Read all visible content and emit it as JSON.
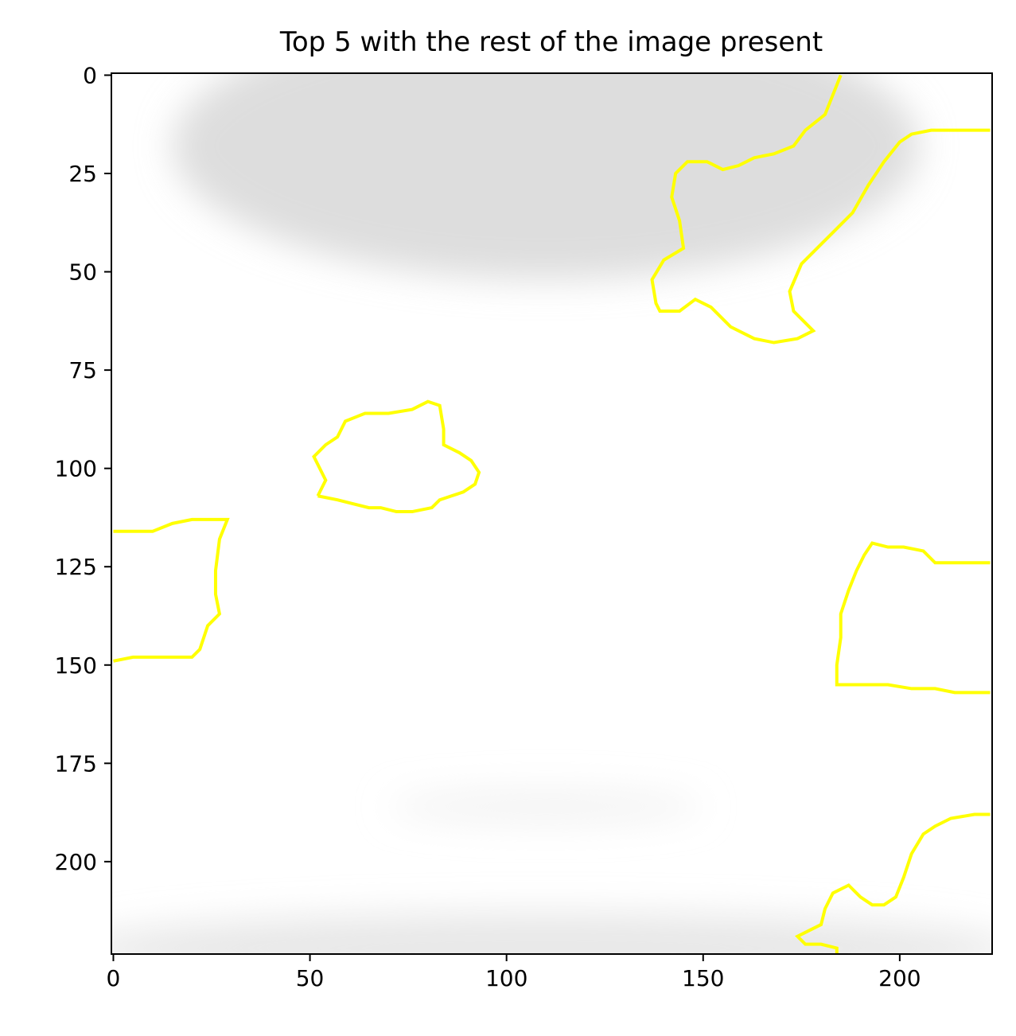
{
  "chart_data": {
    "type": "image",
    "title": "Top 5 with the rest of the image present",
    "xlabel": "",
    "ylabel": "",
    "xlim": [
      -0.5,
      223.5
    ],
    "ylim": [
      223.5,
      -0.5
    ],
    "x_ticks": [
      0,
      50,
      100,
      150,
      200
    ],
    "y_ticks": [
      0,
      25,
      50,
      75,
      100,
      125,
      150,
      175,
      200
    ],
    "x_tick_labels": [
      "0",
      "50",
      "100",
      "150",
      "200"
    ],
    "y_tick_labels": [
      "0",
      "25",
      "50",
      "75",
      "100",
      "125",
      "150",
      "175",
      "200"
    ],
    "grid": false,
    "background": {
      "description": "mostly white grayscale image",
      "shade_regions": [
        {
          "name": "top-cloud",
          "center": [
            110,
            18
          ],
          "radius": [
            95,
            34
          ],
          "gray": "#d2d2d2"
        },
        {
          "name": "bottom-strip",
          "center": [
            110,
            222
          ],
          "radius": [
            120,
            9
          ],
          "gray": "#e0e0e0"
        },
        {
          "name": "faint-band-mid",
          "center": [
            110,
            186
          ],
          "radius": [
            40,
            4
          ],
          "gray": "#ededed"
        }
      ]
    },
    "outline_color": "#ffff00",
    "segments": [
      {
        "name": "region-1-top-right",
        "points": [
          [
            185,
            0
          ],
          [
            183,
            5
          ],
          [
            181,
            10
          ],
          [
            176,
            14
          ],
          [
            173,
            18
          ],
          [
            168,
            20
          ],
          [
            163,
            21
          ],
          [
            159,
            23
          ],
          [
            155,
            24
          ],
          [
            151,
            22
          ],
          [
            146,
            22
          ],
          [
            143,
            25
          ],
          [
            142,
            31
          ],
          [
            144,
            37
          ],
          [
            145,
            44
          ],
          [
            140,
            47
          ],
          [
            137,
            52
          ],
          [
            138,
            58
          ],
          [
            139,
            60
          ],
          [
            144,
            60
          ],
          [
            148,
            57
          ],
          [
            152,
            59
          ],
          [
            157,
            64
          ],
          [
            163,
            67
          ],
          [
            168,
            68
          ],
          [
            174,
            67
          ],
          [
            178,
            65
          ],
          [
            173,
            60
          ],
          [
            172,
            55
          ],
          [
            175,
            48
          ],
          [
            180,
            43
          ],
          [
            183,
            40
          ],
          [
            188,
            35
          ],
          [
            192,
            28
          ],
          [
            196,
            22
          ],
          [
            200,
            17
          ],
          [
            203,
            15
          ],
          [
            208,
            14
          ],
          [
            214,
            14
          ],
          [
            219,
            14
          ],
          [
            223,
            14
          ]
        ]
      },
      {
        "name": "region-2-center",
        "points": [
          [
            52,
            107
          ],
          [
            54,
            103
          ],
          [
            51,
            97
          ],
          [
            54,
            94
          ],
          [
            57,
            92
          ],
          [
            59,
            88
          ],
          [
            64,
            86
          ],
          [
            70,
            86
          ],
          [
            76,
            85
          ],
          [
            80,
            83
          ],
          [
            83,
            84
          ],
          [
            84,
            90
          ],
          [
            84,
            94
          ],
          [
            88,
            96
          ],
          [
            91,
            98
          ],
          [
            93,
            101
          ],
          [
            92,
            104
          ],
          [
            89,
            106
          ],
          [
            86,
            107
          ],
          [
            83,
            108
          ],
          [
            81,
            110
          ],
          [
            76,
            111
          ],
          [
            72,
            111
          ],
          [
            68,
            110
          ],
          [
            65,
            110
          ],
          [
            61,
            109
          ],
          [
            57,
            108
          ],
          [
            52,
            107
          ]
        ]
      },
      {
        "name": "region-3-left",
        "points": [
          [
            0,
            116
          ],
          [
            5,
            116
          ],
          [
            10,
            116
          ],
          [
            15,
            114
          ],
          [
            20,
            113
          ],
          [
            25,
            113
          ],
          [
            29,
            113
          ],
          [
            27,
            118
          ],
          [
            26,
            126
          ],
          [
            26,
            132
          ],
          [
            27,
            137
          ],
          [
            24,
            140
          ],
          [
            22,
            146
          ],
          [
            20,
            148
          ],
          [
            15,
            148
          ],
          [
            10,
            148
          ],
          [
            5,
            148
          ],
          [
            0,
            149
          ]
        ]
      },
      {
        "name": "region-4-right-middle",
        "points": [
          [
            223,
            124
          ],
          [
            213,
            124
          ],
          [
            209,
            124
          ],
          [
            206,
            121
          ],
          [
            201,
            120
          ],
          [
            197,
            120
          ],
          [
            193,
            119
          ],
          [
            191,
            122
          ],
          [
            189,
            126
          ],
          [
            187,
            131
          ],
          [
            185,
            137
          ],
          [
            185,
            143
          ],
          [
            184,
            150
          ],
          [
            184,
            155
          ],
          [
            190,
            155
          ],
          [
            197,
            155
          ],
          [
            203,
            156
          ],
          [
            209,
            156
          ],
          [
            214,
            157
          ],
          [
            223,
            157
          ]
        ]
      },
      {
        "name": "region-5-bottom-right",
        "points": [
          [
            223,
            188
          ],
          [
            219,
            188
          ],
          [
            213,
            189
          ],
          [
            209,
            191
          ],
          [
            206,
            193
          ],
          [
            203,
            198
          ],
          [
            201,
            204
          ],
          [
            199,
            209
          ],
          [
            196,
            211
          ],
          [
            193,
            211
          ],
          [
            190,
            209
          ],
          [
            187,
            206
          ],
          [
            183,
            208
          ],
          [
            181,
            212
          ],
          [
            180,
            216
          ],
          [
            176,
            218
          ],
          [
            174,
            219
          ],
          [
            176,
            221
          ],
          [
            180,
            221
          ],
          [
            184,
            222
          ],
          [
            184,
            224
          ],
          [
            183,
            225
          ]
        ]
      }
    ]
  }
}
